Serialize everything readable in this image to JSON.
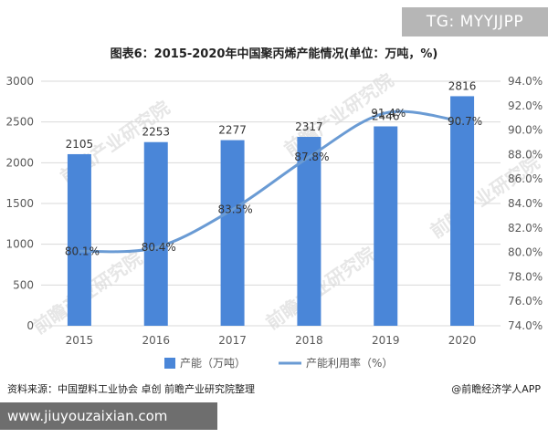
{
  "corner_tag": "TG: MYYJJPP",
  "title": "图表6：2015-2020年中国聚丙烯产能情况(单位：万吨，%)",
  "source": "资料来源：中国塑料工业协会 卓创 前瞻产业研究院整理",
  "brand": "@前瞻经济学人APP",
  "site_url": "www.jiuyouzaixian.com",
  "watermark": "前瞻产业研究院",
  "colors": {
    "bar": "#4a86d8",
    "line": "#6a9bd4",
    "grid": "#d9d9d9",
    "text": "#595959"
  },
  "chart_data": {
    "type": "bar",
    "categories": [
      "2015",
      "2016",
      "2017",
      "2018",
      "2019",
      "2020"
    ],
    "series": [
      {
        "name": "产能（万吨）",
        "type": "bar",
        "axis": "left",
        "values": [
          2105,
          2253,
          2277,
          2317,
          2446,
          2816
        ],
        "labels": [
          "2105",
          "2253",
          "2277",
          "2317",
          "2446",
          "2816"
        ]
      },
      {
        "name": "产能利用率（%）",
        "type": "line",
        "axis": "right",
        "values": [
          80.1,
          80.4,
          83.5,
          87.8,
          91.4,
          90.7
        ],
        "labels": [
          "80.1%",
          "80.4%",
          "83.5%",
          "87.8%",
          "91.4%",
          "90.7%"
        ]
      }
    ],
    "ylim_left": [
      0,
      3000
    ],
    "yticks_left": [
      "0",
      "500",
      "1000",
      "1500",
      "2000",
      "2500",
      "3000"
    ],
    "ylim_right": [
      74,
      94
    ],
    "yticks_right": [
      "74.0%",
      "76.0%",
      "78.0%",
      "80.0%",
      "82.0%",
      "84.0%",
      "86.0%",
      "88.0%",
      "90.0%",
      "92.0%",
      "94.0%"
    ],
    "grid": true,
    "legend": "bottom"
  }
}
